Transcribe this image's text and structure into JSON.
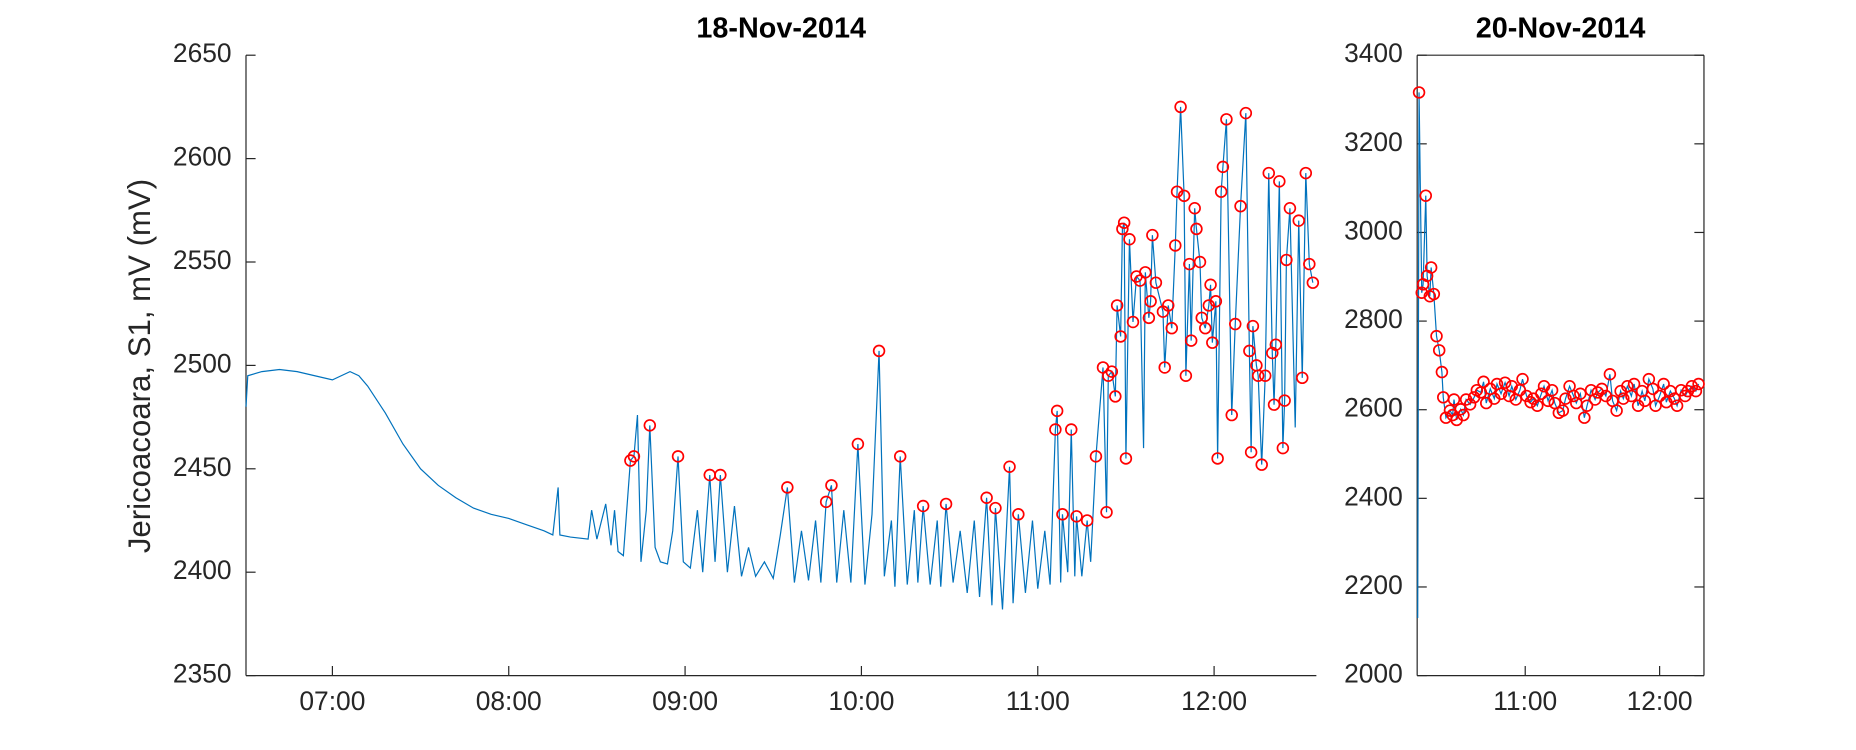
{
  "chart_data": [
    {
      "type": "line",
      "title": "18-Nov-2014",
      "ylabel": "Jericoacoara, S1, mV (mV)",
      "xlim": [
        6.51,
        12.58
      ],
      "xticks": [
        {
          "value": 7,
          "label": "07:00"
        },
        {
          "value": 8,
          "label": "08:00"
        },
        {
          "value": 9,
          "label": "09:00"
        },
        {
          "value": 10,
          "label": "10:00"
        },
        {
          "value": 11,
          "label": "11:00"
        },
        {
          "value": 12,
          "label": "12:00"
        }
      ],
      "ylim": [
        2350,
        2650
      ],
      "yticks": [
        2350,
        2400,
        2450,
        2500,
        2550,
        2600,
        2650
      ],
      "box": false,
      "series": [
        {
          "style": "line",
          "color": "#0072bd",
          "x": [
            6.51,
            6.52,
            6.6,
            6.7,
            6.8,
            6.9,
            7.0,
            7.1,
            7.15,
            7.2,
            7.3,
            7.4,
            7.5,
            7.6,
            7.7,
            7.8,
            7.9,
            8.0,
            8.1,
            8.2,
            8.25,
            8.28,
            8.29,
            8.35,
            8.45,
            8.47,
            8.5,
            8.55,
            8.58,
            8.6,
            8.62,
            8.65,
            8.69,
            8.71,
            8.73,
            8.75,
            8.78,
            8.8,
            8.83,
            8.86,
            8.9,
            8.93,
            8.96,
            8.99,
            9.03,
            9.07,
            9.1,
            9.14,
            9.17,
            9.2,
            9.24,
            9.28,
            9.32,
            9.36,
            9.4,
            9.45,
            9.5,
            9.54,
            9.58,
            9.62,
            9.66,
            9.7,
            9.74,
            9.77,
            9.8,
            9.83,
            9.86,
            9.9,
            9.94,
            9.98,
            10.02,
            10.06,
            10.1,
            10.13,
            10.17,
            10.19,
            10.22,
            10.26,
            10.3,
            10.32,
            10.35,
            10.39,
            10.43,
            10.45,
            10.48,
            10.52,
            10.56,
            10.6,
            10.64,
            10.67,
            10.71,
            10.74,
            10.76,
            10.8,
            10.84,
            10.86,
            10.89,
            10.93,
            10.97,
            11.0,
            11.04,
            11.07,
            11.1,
            11.11,
            11.13,
            11.14,
            11.17,
            11.19,
            11.21,
            11.22,
            11.25,
            11.28,
            11.3,
            11.33,
            11.37,
            11.39,
            11.4,
            11.42,
            11.44,
            11.45,
            11.47,
            11.48,
            11.49,
            11.5,
            11.52,
            11.54,
            11.56,
            11.58,
            11.6,
            11.61,
            11.63,
            11.64,
            11.65,
            11.67,
            11.71,
            11.72,
            11.74,
            11.76,
            11.78,
            11.79,
            11.81,
            11.83,
            11.84,
            11.86,
            11.87,
            11.89,
            11.9,
            11.92,
            11.93,
            11.95,
            11.97,
            11.98,
            11.99,
            12.01,
            12.02,
            12.04,
            12.05,
            12.07,
            12.1,
            12.12,
            12.15,
            12.18,
            12.2,
            12.21,
            12.22,
            12.24,
            12.25,
            12.27,
            12.29,
            12.31,
            12.33,
            12.34,
            12.35,
            12.37,
            12.39,
            12.4,
            12.41,
            12.43,
            12.46,
            12.48,
            12.5,
            12.52,
            12.54,
            12.56
          ],
          "values": [
            2480,
            2495,
            2497,
            2498,
            2497,
            2495,
            2493,
            2497,
            2495,
            2490,
            2477,
            2462,
            2450,
            2442,
            2436,
            2431,
            2428,
            2426,
            2423,
            2420,
            2418,
            2441,
            2418,
            2417,
            2416,
            2430,
            2416,
            2433,
            2413,
            2430,
            2410,
            2408,
            2454,
            2456,
            2476,
            2405,
            2430,
            2471,
            2412,
            2405,
            2404,
            2420,
            2456,
            2405,
            2402,
            2430,
            2400,
            2447,
            2405,
            2447,
            2400,
            2432,
            2398,
            2412,
            2398,
            2405,
            2397,
            2418,
            2441,
            2395,
            2420,
            2396,
            2425,
            2395,
            2434,
            2442,
            2395,
            2430,
            2395,
            2462,
            2394,
            2428,
            2507,
            2398,
            2425,
            2393,
            2456,
            2394,
            2430,
            2395,
            2432,
            2394,
            2425,
            2393,
            2433,
            2395,
            2420,
            2390,
            2425,
            2388,
            2436,
            2384,
            2431,
            2382,
            2451,
            2385,
            2428,
            2390,
            2425,
            2392,
            2420,
            2394,
            2469,
            2478,
            2395,
            2428,
            2400,
            2469,
            2398,
            2427,
            2398,
            2425,
            2405,
            2456,
            2499,
            2429,
            2495,
            2497,
            2485,
            2529,
            2514,
            2566,
            2569,
            2455,
            2561,
            2521,
            2543,
            2541,
            2460,
            2545,
            2523,
            2531,
            2563,
            2540,
            2526,
            2499,
            2529,
            2518,
            2558,
            2584,
            2625,
            2582,
            2495,
            2549,
            2512,
            2576,
            2566,
            2550,
            2523,
            2518,
            2529,
            2539,
            2511,
            2531,
            2455,
            2584,
            2596,
            2619,
            2476,
            2520,
            2577,
            2622,
            2507,
            2458,
            2519,
            2500,
            2495,
            2452,
            2495,
            2593,
            2506,
            2481,
            2510,
            2589,
            2460,
            2483,
            2551,
            2576,
            2470,
            2570,
            2494,
            2593,
            2549,
            2540
          ]
        },
        {
          "style": "markers",
          "color": "#ff0000",
          "x": [
            8.69,
            8.71,
            8.8,
            8.96,
            9.14,
            9.2,
            9.58,
            9.8,
            9.83,
            9.98,
            10.1,
            10.22,
            10.35,
            10.48,
            10.71,
            10.76,
            10.84,
            10.89,
            11.1,
            11.11,
            11.14,
            11.19,
            11.22,
            11.28,
            11.33,
            11.37,
            11.39,
            11.4,
            11.42,
            11.44,
            11.45,
            11.47,
            11.48,
            11.49,
            11.5,
            11.52,
            11.54,
            11.56,
            11.58,
            11.61,
            11.63,
            11.64,
            11.65,
            11.67,
            11.71,
            11.72,
            11.74,
            11.76,
            11.78,
            11.79,
            11.81,
            11.83,
            11.84,
            11.86,
            11.87,
            11.89,
            11.9,
            11.92,
            11.93,
            11.95,
            11.97,
            11.98,
            11.99,
            12.01,
            12.02,
            12.04,
            12.05,
            12.07,
            12.1,
            12.12,
            12.15,
            12.18,
            12.2,
            12.21,
            12.22,
            12.24,
            12.25,
            12.27,
            12.29,
            12.31,
            12.33,
            12.34,
            12.35,
            12.37,
            12.39,
            12.4,
            12.41,
            12.43,
            12.48,
            12.5,
            12.52,
            12.54,
            12.56
          ],
          "values": [
            2454,
            2456,
            2471,
            2456,
            2447,
            2447,
            2441,
            2434,
            2442,
            2462,
            2507,
            2456,
            2432,
            2433,
            2436,
            2431,
            2451,
            2428,
            2469,
            2478,
            2428,
            2469,
            2427,
            2425,
            2456,
            2499,
            2429,
            2495,
            2497,
            2485,
            2529,
            2514,
            2566,
            2569,
            2455,
            2561,
            2521,
            2543,
            2541,
            2545,
            2523,
            2531,
            2563,
            2540,
            2526,
            2499,
            2529,
            2518,
            2558,
            2584,
            2625,
            2582,
            2495,
            2549,
            2512,
            2576,
            2566,
            2550,
            2523,
            2518,
            2529,
            2539,
            2511,
            2531,
            2455,
            2584,
            2596,
            2619,
            2476,
            2520,
            2577,
            2622,
            2507,
            2458,
            2519,
            2500,
            2495,
            2452,
            2495,
            2593,
            2506,
            2481,
            2510,
            2589,
            2460,
            2483,
            2551,
            2576,
            2570,
            2494,
            2593,
            2549,
            2540
          ]
        }
      ]
    },
    {
      "type": "line",
      "title": "20-Nov-2014",
      "xlim": [
        10.196,
        12.33
      ],
      "xticks": [
        {
          "value": 11,
          "label": "11:00"
        },
        {
          "value": 12,
          "label": "12:00"
        }
      ],
      "ylim": [
        2000,
        3400
      ],
      "yticks": [
        2000,
        2200,
        2400,
        2600,
        2800,
        3000,
        3200,
        3400
      ],
      "box": true,
      "series": [
        {
          "style": "line",
          "color": "#0072bd",
          "x": [
            10.2,
            10.21,
            10.23,
            10.24,
            10.26,
            10.27,
            10.29,
            10.3,
            10.32,
            10.34,
            10.36,
            10.38,
            10.39,
            10.41,
            10.44,
            10.46,
            10.47,
            10.49,
            10.52,
            10.54,
            10.56,
            10.59,
            10.62,
            10.64,
            10.67,
            10.69,
            10.71,
            10.74,
            10.77,
            10.79,
            10.82,
            10.85,
            10.88,
            10.9,
            10.93,
            10.96,
            10.98,
            11.01,
            11.04,
            11.06,
            11.09,
            11.12,
            11.14,
            11.17,
            11.2,
            11.22,
            11.25,
            11.28,
            11.3,
            11.33,
            11.36,
            11.38,
            11.41,
            11.44,
            11.46,
            11.49,
            11.52,
            11.54,
            11.57,
            11.6,
            11.63,
            11.65,
            11.68,
            11.71,
            11.73,
            11.76,
            11.79,
            11.81,
            11.84,
            11.87,
            11.89,
            11.92,
            11.95,
            11.97,
            12.0,
            12.03,
            12.05,
            12.08,
            12.11,
            12.13,
            12.16,
            12.19,
            12.21,
            12.24,
            12.27,
            12.29
          ],
          "values": [
            2130,
            3316,
            2864,
            2883,
            3083,
            2902,
            2856,
            2921,
            2861,
            2766,
            2734,
            2685,
            2628,
            2582,
            2598,
            2588,
            2623,
            2577,
            2601,
            2588,
            2623,
            2612,
            2628,
            2644,
            2639,
            2663,
            2615,
            2647,
            2625,
            2658,
            2636,
            2661,
            2631,
            2653,
            2623,
            2644,
            2669,
            2631,
            2617,
            2625,
            2609,
            2636,
            2653,
            2620,
            2644,
            2615,
            2593,
            2598,
            2625,
            2653,
            2631,
            2615,
            2636,
            2582,
            2609,
            2644,
            2623,
            2639,
            2647,
            2631,
            2680,
            2620,
            2598,
            2642,
            2625,
            2653,
            2631,
            2658,
            2609,
            2642,
            2620,
            2669,
            2647,
            2609,
            2631,
            2658,
            2617,
            2642,
            2625,
            2609,
            2644,
            2631,
            2642,
            2653,
            2642,
            2658
          ]
        },
        {
          "style": "markers",
          "color": "#ff0000",
          "x": [
            10.21,
            10.23,
            10.24,
            10.26,
            10.27,
            10.29,
            10.3,
            10.32,
            10.34,
            10.36,
            10.38,
            10.39,
            10.41,
            10.44,
            10.46,
            10.47,
            10.49,
            10.52,
            10.54,
            10.56,
            10.59,
            10.62,
            10.64,
            10.67,
            10.69,
            10.71,
            10.74,
            10.77,
            10.79,
            10.82,
            10.85,
            10.88,
            10.9,
            10.93,
            10.96,
            10.98,
            11.01,
            11.04,
            11.06,
            11.09,
            11.12,
            11.14,
            11.17,
            11.2,
            11.22,
            11.25,
            11.28,
            11.3,
            11.33,
            11.36,
            11.38,
            11.41,
            11.44,
            11.46,
            11.49,
            11.52,
            11.54,
            11.57,
            11.6,
            11.63,
            11.65,
            11.68,
            11.71,
            11.73,
            11.76,
            11.79,
            11.81,
            11.84,
            11.87,
            11.89,
            11.92,
            11.95,
            11.97,
            12.0,
            12.03,
            12.05,
            12.08,
            12.11,
            12.13,
            12.16,
            12.19,
            12.21,
            12.24,
            12.27,
            12.29
          ],
          "values": [
            3316,
            2864,
            2883,
            3083,
            2902,
            2856,
            2921,
            2861,
            2766,
            2734,
            2685,
            2628,
            2582,
            2598,
            2588,
            2623,
            2577,
            2601,
            2588,
            2623,
            2612,
            2628,
            2644,
            2639,
            2663,
            2615,
            2647,
            2625,
            2658,
            2636,
            2661,
            2631,
            2653,
            2623,
            2644,
            2669,
            2631,
            2617,
            2625,
            2609,
            2636,
            2653,
            2620,
            2644,
            2615,
            2593,
            2598,
            2625,
            2653,
            2631,
            2615,
            2636,
            2582,
            2609,
            2644,
            2623,
            2639,
            2647,
            2631,
            2680,
            2620,
            2598,
            2642,
            2625,
            2653,
            2631,
            2658,
            2609,
            2642,
            2620,
            2669,
            2647,
            2609,
            2631,
            2658,
            2617,
            2642,
            2625,
            2609,
            2644,
            2631,
            2642,
            2653,
            2642,
            2658
          ]
        }
      ]
    }
  ]
}
